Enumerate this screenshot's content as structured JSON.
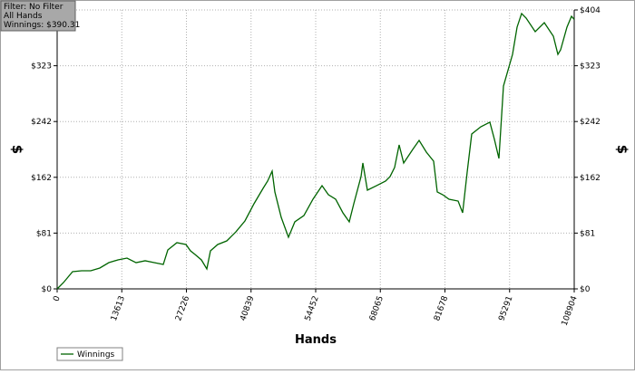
{
  "chart_data": {
    "type": "line",
    "annotations": [
      "Filter: No Filter",
      "All Hands",
      "Winnings: $390.31"
    ],
    "xlabel": "Hands",
    "ylabel": "$",
    "x": [
      0,
      1337,
      3248,
      5159,
      7069,
      8980,
      10891,
      12801,
      14712,
      16623,
      18533,
      20443,
      22354,
      23309,
      25220,
      27131,
      28086,
      29041,
      30379,
      31525,
      32289,
      33818,
      35728,
      37639,
      39549,
      41460,
      43371,
      44326,
      45281,
      45854,
      47192,
      48721,
      50058,
      51969,
      53879,
      55790,
      57127,
      58656,
      60184,
      61521,
      62477,
      64005,
      64387,
      65343,
      67253,
      69164,
      70119,
      71075,
      72030,
      72985,
      74896,
      76233,
      77762,
      79290,
      80054,
      81201,
      82538,
      84449,
      85404,
      86359,
      87315,
      89225,
      91136,
      92091,
      93047,
      94002,
      95913,
      96868,
      97823,
      98779,
      100689,
      102600,
      104511,
      105466,
      106039,
      107376,
      108332,
      108904
    ],
    "series": [
      {
        "name": "Winnings",
        "color": "#006400",
        "values": [
          0,
          9.2,
          24.9,
          26.2,
          26.2,
          30.2,
          38.0,
          42.0,
          44.6,
          38.0,
          40.7,
          38.0,
          35.4,
          56.4,
          66.9,
          64.3,
          55.1,
          49.8,
          42.0,
          28.9,
          55.1,
          64.3,
          69.5,
          82.6,
          98.4,
          123.3,
          145.6,
          156.1,
          170.5,
          140.4,
          103.6,
          74.8,
          97.1,
          106.2,
          129.9,
          149.5,
          136.4,
          129.9,
          110.2,
          97.1,
          123.3,
          162.7,
          182.3,
          143.0,
          149.5,
          156.1,
          162.7,
          175.8,
          208.6,
          182.3,
          202.0,
          215.1,
          198.1,
          185.0,
          140.4,
          136.4,
          129.9,
          127.2,
          110.2,
          169.2,
          224.3,
          234.8,
          241.4,
          216.7,
          188.9,
          293.8,
          339.7,
          379.1,
          398.8,
          392.2,
          372.5,
          385.6,
          366.0,
          339.7,
          346.3,
          379.1,
          394.8,
          390.31
        ]
      }
    ],
    "xlim": [
      0,
      108904
    ],
    "xticks": [
      0,
      13613,
      27226,
      40839,
      54452,
      68065,
      81678,
      95291,
      108904
    ],
    "ylim": [
      0,
      404
    ],
    "yticks": [
      {
        "value": 0,
        "label": "$0"
      },
      {
        "value": 80.8,
        "label": "$81"
      },
      {
        "value": 161.6,
        "label": "$162"
      },
      {
        "value": 242.4,
        "label": "$242"
      },
      {
        "value": 323.2,
        "label": "$323"
      },
      {
        "value": 404,
        "label": "$404"
      }
    ],
    "grid": true,
    "legend": "bottom-left"
  }
}
